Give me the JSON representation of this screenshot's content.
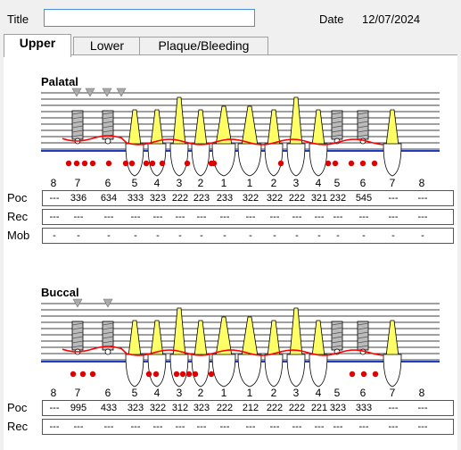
{
  "header": {
    "title_label": "Title",
    "title_value": "",
    "date_label": "Date",
    "date_value": "12/07/2024"
  },
  "tabs": [
    {
      "label": "Upper"
    },
    {
      "label": "Lower"
    },
    {
      "label": "Plaque/Bleeding"
    }
  ],
  "colors": {
    "gum_line": "#ff0000",
    "bone_line": "#1f3fc0",
    "tooth_fill": "#ffff66",
    "bleeding_dot": "#e00000"
  },
  "palatal": {
    "title": "Palatal",
    "teeth": [
      "8",
      "7",
      "6",
      "5",
      "4",
      "3",
      "2",
      "1",
      "1",
      "2",
      "3",
      "4",
      "5",
      "6",
      "7",
      "8"
    ],
    "rows": [
      {
        "label": "Poc",
        "values": [
          "---",
          "336",
          "634",
          "333",
          "323",
          "222",
          "223",
          "233",
          "322",
          "322",
          "222",
          "321",
          "232",
          "545",
          "---",
          "---"
        ]
      },
      {
        "label": "Rec",
        "values": [
          "---",
          "---",
          "---",
          "---",
          "---",
          "---",
          "---",
          "---",
          "---",
          "---",
          "---",
          "---",
          "---",
          "---",
          "---",
          "---"
        ]
      },
      {
        "label": "Mob",
        "values": [
          "-",
          "-",
          "-",
          "-",
          "-",
          "-",
          "-",
          "-",
          "-",
          "-",
          "-",
          "-",
          "-",
          "-",
          "-",
          "-"
        ]
      }
    ]
  },
  "buccal": {
    "title": "Buccal",
    "teeth": [
      "8",
      "7",
      "6",
      "5",
      "4",
      "3",
      "2",
      "1",
      "1",
      "2",
      "3",
      "4",
      "5",
      "6",
      "7",
      "8"
    ],
    "rows": [
      {
        "label": "Poc",
        "values": [
          "---",
          "995",
          "433",
          "323",
          "322",
          "312",
          "323",
          "222",
          "212",
          "222",
          "222",
          "221",
          "323",
          "333",
          "---",
          "---"
        ]
      },
      {
        "label": "Rec",
        "values": [
          "---",
          "---",
          "---",
          "---",
          "---",
          "---",
          "---",
          "---",
          "---",
          "---",
          "---",
          "---",
          "---",
          "---",
          "---",
          "---"
        ]
      }
    ]
  }
}
